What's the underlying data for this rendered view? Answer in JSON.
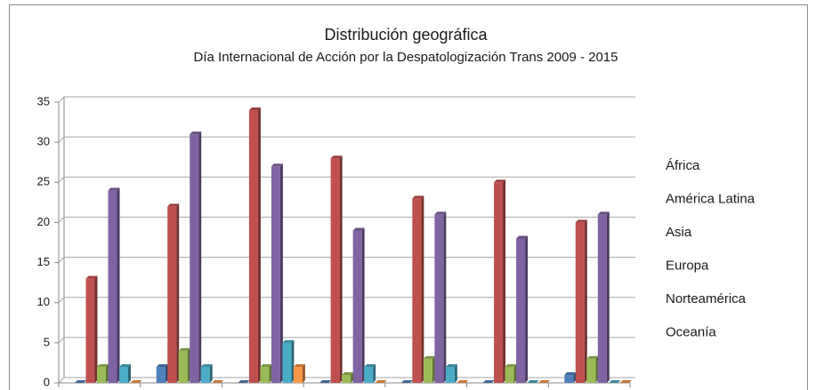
{
  "chart_data": {
    "type": "bar3d",
    "title": "Distribución geográfica",
    "subtitle": "Día Internacional de Acción por la Despatologización Trans 2009 - 2015",
    "categories": [
      null,
      null,
      null,
      null,
      null,
      null,
      null
    ],
    "series": [
      {
        "name": "África",
        "color": "#4f81bd",
        "values": [
          0,
          2,
          0,
          0,
          0,
          0,
          1
        ]
      },
      {
        "name": "América Latina",
        "color": "#c0504d",
        "values": [
          13,
          22,
          34,
          28,
          23,
          25,
          20
        ]
      },
      {
        "name": "Asia",
        "color": "#9bbb59",
        "values": [
          2,
          4,
          2,
          1,
          3,
          2,
          3
        ]
      },
      {
        "name": "Europa",
        "color": "#8064a2",
        "values": [
          24,
          31,
          27,
          19,
          21,
          18,
          21
        ]
      },
      {
        "name": "Norteamérica",
        "color": "#4bacc6",
        "values": [
          2,
          2,
          5,
          2,
          2,
          0,
          0
        ]
      },
      {
        "name": "Oceanía",
        "color": "#f79646",
        "values": [
          0,
          0,
          2,
          0,
          0,
          0,
          0
        ]
      }
    ],
    "ylim": [
      0,
      35
    ],
    "yticks": [
      0,
      5,
      10,
      15,
      20,
      25,
      30,
      35
    ],
    "grid": true
  }
}
